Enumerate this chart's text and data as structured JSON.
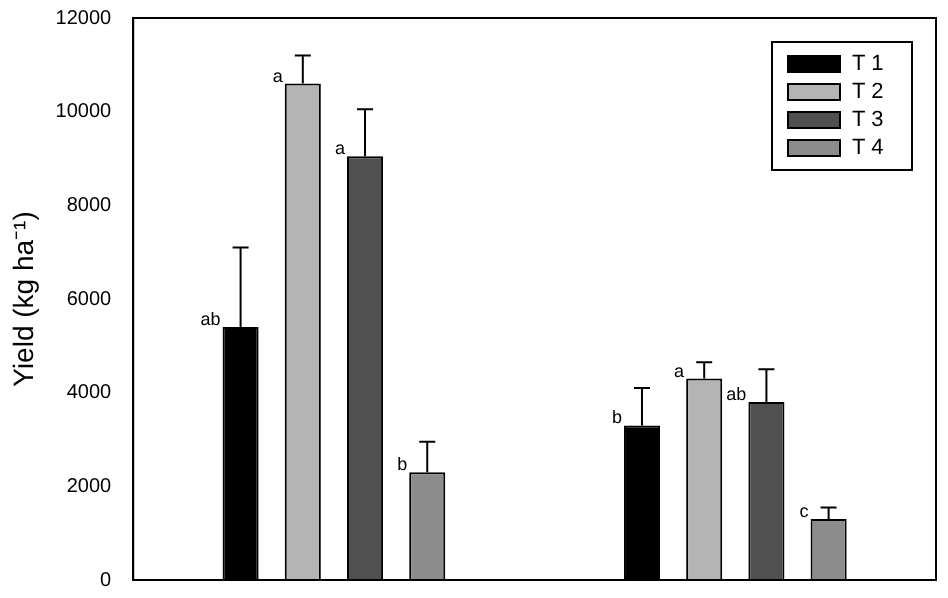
{
  "chart_data": {
    "type": "bar",
    "ylabel": "Yield (kg ha⁻¹)",
    "categories": [
      null,
      null
    ],
    "ylim": [
      0,
      12000
    ],
    "yticks": [
      0,
      2000,
      4000,
      6000,
      8000,
      10000,
      12000
    ],
    "grid": false,
    "legend": "top right",
    "series": [
      {
        "name": "T 1",
        "color": "#000000",
        "values": [
          5400,
          3300
        ],
        "errors": [
          [
            5400,
            7100
          ],
          [
            3300,
            4100
          ]
        ],
        "value_labels": [
          "ab",
          "b"
        ]
      },
      {
        "name": "T 2",
        "color": "#b4b4b4",
        "values": [
          10600,
          4300
        ],
        "errors": [
          [
            10600,
            11200
          ],
          [
            4300,
            4650
          ]
        ],
        "value_labels": [
          "a",
          "a"
        ]
      },
      {
        "name": "T 3",
        "color": "#505050",
        "values": [
          9050,
          3800
        ],
        "errors": [
          [
            9050,
            10050
          ],
          [
            3800,
            4500
          ]
        ],
        "value_labels": [
          "a",
          "ab"
        ]
      },
      {
        "name": "T 4",
        "color": "#8c8c8c",
        "values": [
          2300,
          1300
        ],
        "errors": [
          [
            2300,
            2950
          ],
          [
            1300,
            1550
          ]
        ],
        "value_labels": [
          "b",
          "c"
        ]
      }
    ]
  }
}
